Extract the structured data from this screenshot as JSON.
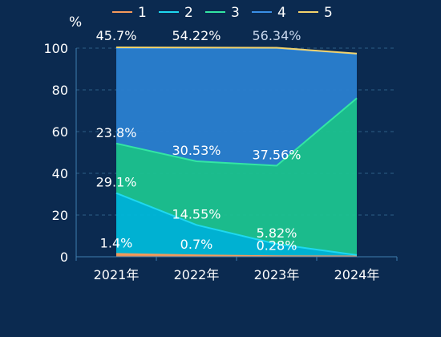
{
  "chart_data": {
    "type": "area",
    "stacked": true,
    "categories": [
      "2021年",
      "2022年",
      "2023年",
      "2024年"
    ],
    "ylabel": "%",
    "ylim": [
      0,
      100
    ],
    "yticks": [
      0,
      20,
      40,
      60,
      80,
      100
    ],
    "grid": true,
    "legend_position": "top",
    "series": [
      {
        "name": "1",
        "color": "#f59a5b",
        "values": [
          1.4,
          0.7,
          0.28,
          0.2
        ],
        "labels": [
          "1.4%",
          "0.7%",
          "0.28%",
          ""
        ]
      },
      {
        "name": "2",
        "color": "#00b8d9",
        "line_color": "#1ed8f0",
        "values": [
          29.1,
          14.55,
          5.82,
          0.6
        ],
        "labels": [
          "29.1%",
          "14.55%",
          "5.82%",
          ""
        ]
      },
      {
        "name": "3",
        "color": "#1cc38f",
        "line_color": "#33e6a3",
        "values": [
          23.8,
          30.53,
          37.56,
          75.2
        ],
        "labels": [
          "23.8%",
          "30.53%",
          "37.56%",
          ""
        ]
      },
      {
        "name": "4",
        "color": "#2a7fd0",
        "line_color": "#3a8fe6",
        "values": [
          45.7,
          54.22,
          56.34,
          21.2
        ],
        "labels": [
          "45.7%",
          "54.22%",
          "56.34%",
          ""
        ]
      },
      {
        "name": "5",
        "color": "#f3d36b",
        "values": [
          0.4,
          0.3,
          0.2,
          0.2
        ],
        "labels": [
          "",
          "",
          "",
          ""
        ]
      }
    ]
  }
}
